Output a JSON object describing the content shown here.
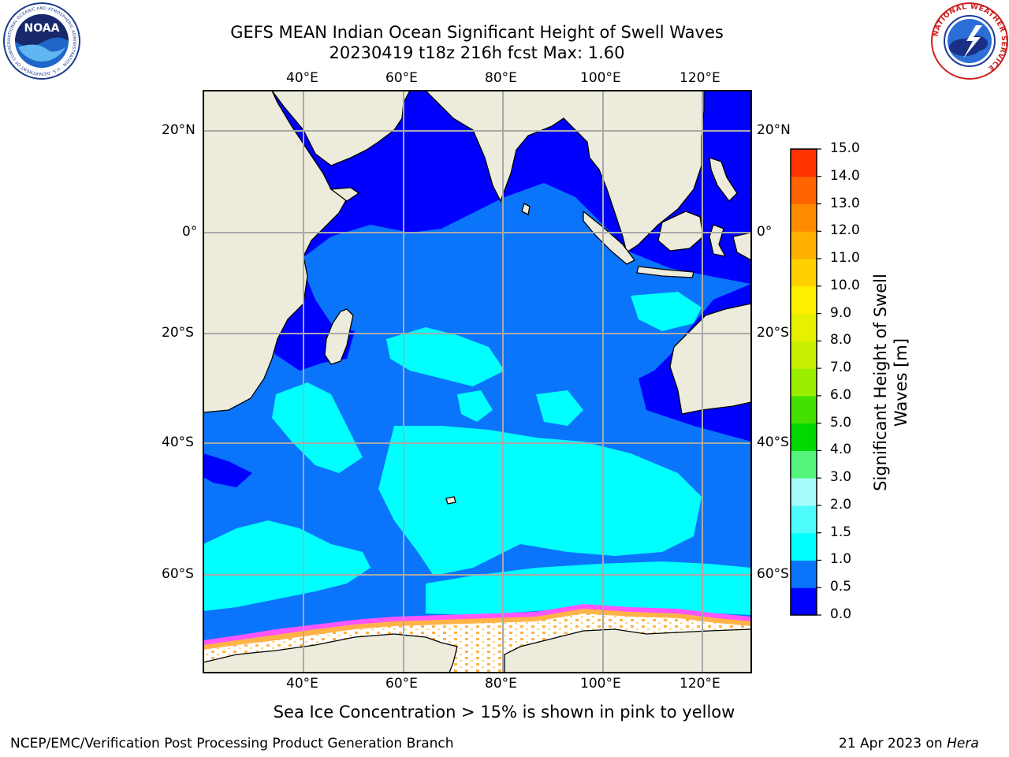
{
  "header": {
    "title_line1": "GEFS MEAN Indian Ocean Significant Height of Swell Waves",
    "title_line2": "20230419 t18z 216h fcst   Max: 1.60"
  },
  "logos": {
    "left": {
      "name": "NOAA",
      "ring_text": "NATIONAL OCEANIC AND ATMOSPHERIC ADMINISTRATION · U.S. DEPARTMENT OF COMMERCE"
    },
    "right": {
      "name": "National Weather Service",
      "ring_text": "NATIONAL WEATHER SERVICE"
    }
  },
  "map": {
    "lon_ticks": [
      "40°E",
      "60°E",
      "80°E",
      "100°E",
      "120°E"
    ],
    "lat_ticks": [
      "20°N",
      "0°",
      "20°S",
      "40°S",
      "60°S"
    ],
    "colors": {
      "land": "#edecdc",
      "dark_blue": "#0000ff",
      "mid_blue": "#0a74fb",
      "cyan": "#00ffff",
      "light_cyan": "#4ffcfc",
      "ice_white": "#ffffff",
      "ice_pink": "#ff55ff",
      "ice_orange": "#ffb347"
    }
  },
  "colorbar": {
    "label": "Significant Height of Swell Waves [m]",
    "tick_labels": [
      "0.0",
      "0.5",
      "1.0",
      "1.5",
      "2.0",
      "3.0",
      "4.0",
      "5.0",
      "6.0",
      "7.0",
      "8.0",
      "9.0",
      "10.0",
      "11.0",
      "12.0",
      "13.0",
      "14.0",
      "15.0"
    ],
    "colors": [
      "#0000ff",
      "#0a74fb",
      "#00ffff",
      "#4ffcfc",
      "#a6fbfb",
      "#55f57d",
      "#00d800",
      "#44e000",
      "#9aef00",
      "#c8f000",
      "#e6f000",
      "#fff000",
      "#ffd000",
      "#ffb000",
      "#ff8c00",
      "#ff6400",
      "#ff3200"
    ]
  },
  "caption": "Sea Ice Concentration > 15% is shown in pink to yellow",
  "footer": {
    "left": "NCEP/EMC/Verification Post Processing Product Generation Branch",
    "right_date": "21 Apr 2023 on ",
    "right_machine": "Hera"
  }
}
